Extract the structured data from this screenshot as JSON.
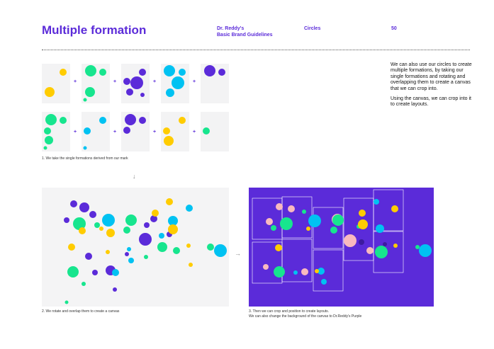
{
  "header": {
    "title": "Multiple formation",
    "brand_line1": "Dr. Reddy's",
    "brand_line2": "Basic Brand Guidelines",
    "section": "Circles",
    "page_number": "50"
  },
  "plus_sign": "+",
  "down_arrow": "↓",
  "right_arrow": "→",
  "captions": {
    "step1": "1. We take the single formations derived from our mark",
    "step2": "2. We rotate and overlap them to create a canvas",
    "step3": "3. Then we can crop and position to create layouts.\nWe can also change the background of the canvas to Dr.Reddy's Purple"
  },
  "side_text": {
    "paragraph1": "We can also use our circles to create multiple formations, by taking our single formations and rotating and overlapping them to create a canvas that we can crop into.",
    "paragraph2": "Using the canvas, we can crop into it to create layouts."
  },
  "colors": {
    "purple": "#5b2bd9",
    "green": "#17e58e",
    "yellow": "#ffcc00",
    "blue": "#00c2f2",
    "pink": "#f9b9bf",
    "tile_bg": "#f3f3f4",
    "canvas_bg": "#f4f4f5"
  }
}
